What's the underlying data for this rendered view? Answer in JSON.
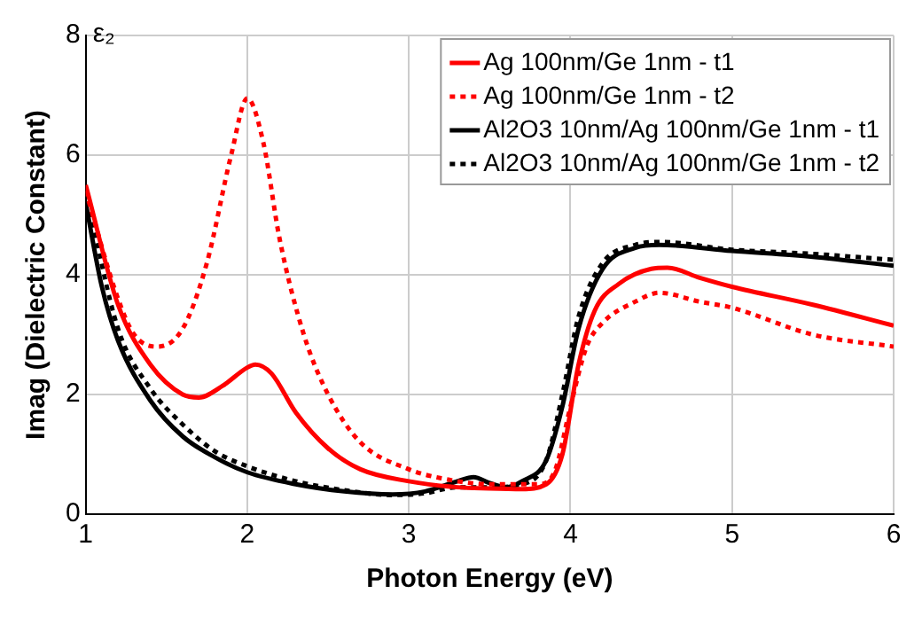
{
  "chart_data": {
    "type": "line",
    "xlabel": "Photon Energy (eV)",
    "ylabel": "Imag (Dielectric Constant)",
    "annotations": [
      "ε₂"
    ],
    "xlim": [
      1,
      6
    ],
    "xticks": [
      1,
      2,
      3,
      4,
      5,
      6
    ],
    "ylim": [
      0,
      8
    ],
    "yticks": [
      0,
      2,
      4,
      6,
      8
    ],
    "grid": true,
    "legend": "top right",
    "marker": "none",
    "series": [
      {
        "name": "Ag 100nm/Ge 1nm - t1",
        "color": "#ff0000",
        "line_style": "solid",
        "x": [
          1,
          1.2,
          1.4,
          1.6,
          1.7,
          1.85,
          2.0,
          2.05,
          2.15,
          2.3,
          2.5,
          2.7,
          3.0,
          3.3,
          3.5,
          3.7,
          3.85,
          3.95,
          4.05,
          4.15,
          4.3,
          4.5,
          4.6,
          4.8,
          5.0,
          5.5,
          6.0
        ],
        "values": [
          5.5,
          3.5,
          2.5,
          2.0,
          1.95,
          2.15,
          2.45,
          2.5,
          2.35,
          1.7,
          1.1,
          0.75,
          0.55,
          0.45,
          0.43,
          0.42,
          0.5,
          1.0,
          2.5,
          3.4,
          3.85,
          4.1,
          4.12,
          3.95,
          3.8,
          3.5,
          3.15
        ]
      },
      {
        "name": "Ag 100nm/Ge 1nm - t2",
        "color": "#ff0000",
        "line_style": "dotted",
        "x": [
          1,
          1.2,
          1.3,
          1.44,
          1.6,
          1.75,
          1.9,
          2.0,
          2.1,
          2.2,
          2.35,
          2.5,
          2.7,
          3.0,
          3.2,
          3.5,
          3.8,
          3.9,
          4.0,
          4.1,
          4.2,
          4.4,
          4.55,
          4.8,
          5.0,
          5.5,
          6.0
        ],
        "values": [
          5.4,
          3.6,
          3.0,
          2.8,
          3.1,
          4.2,
          6.0,
          6.95,
          6.2,
          4.6,
          3.0,
          2.0,
          1.2,
          0.75,
          0.6,
          0.5,
          0.5,
          0.7,
          1.8,
          2.8,
          3.2,
          3.55,
          3.7,
          3.55,
          3.45,
          3.0,
          2.8
        ]
      },
      {
        "name": "Al2O3 10nm/Ag 100nm/Ge 1nm - t1",
        "color": "#000000",
        "line_style": "solid",
        "x": [
          1,
          1.1,
          1.2,
          1.4,
          1.6,
          1.8,
          2.0,
          2.3,
          2.6,
          2.9,
          3.1,
          3.3,
          3.4,
          3.5,
          3.6,
          3.7,
          3.85,
          3.95,
          4.05,
          4.2,
          4.4,
          4.55,
          5.0,
          5.5,
          6.0
        ],
        "values": [
          5.2,
          3.8,
          2.9,
          1.9,
          1.3,
          0.95,
          0.7,
          0.5,
          0.38,
          0.33,
          0.38,
          0.55,
          0.62,
          0.52,
          0.45,
          0.55,
          0.9,
          1.8,
          3.1,
          4.1,
          4.45,
          4.5,
          4.4,
          4.3,
          4.15
        ]
      },
      {
        "name": "Al2O3 10nm/Ag 100nm/Ge 1nm - t2",
        "color": "#000000",
        "line_style": "dotted",
        "x": [
          1,
          1.2,
          1.4,
          1.6,
          1.8,
          2.0,
          2.3,
          2.6,
          2.9,
          3.1,
          3.3,
          3.5,
          3.7,
          3.85,
          3.95,
          4.05,
          4.2,
          4.4,
          4.55,
          5.0,
          5.5,
          6.0
        ],
        "values": [
          5.4,
          3.1,
          2.1,
          1.5,
          1.05,
          0.8,
          0.55,
          0.4,
          0.32,
          0.35,
          0.45,
          0.45,
          0.5,
          0.9,
          2.0,
          3.3,
          4.2,
          4.5,
          4.55,
          4.42,
          4.35,
          4.25
        ]
      }
    ]
  }
}
